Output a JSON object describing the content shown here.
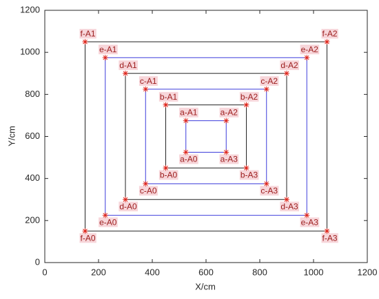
{
  "chart_data": {
    "type": "line",
    "xlabel": "X/cm",
    "ylabel": "Y/cm",
    "xlim": [
      0,
      1200
    ],
    "ylim": [
      0,
      1200
    ],
    "xticks": [
      0,
      200,
      400,
      600,
      800,
      1000,
      1200
    ],
    "yticks": [
      0,
      200,
      400,
      600,
      800,
      1000,
      1200
    ],
    "closed": true,
    "marker_color": "#e0261c",
    "label_background": "#f7d6da",
    "series": [
      {
        "labels": [
          "a-A0",
          "a-A1",
          "a-A2",
          "a-A3"
        ],
        "color": "#3b3bdb",
        "x": [
          525,
          525,
          675,
          675
        ],
        "values": [
          525,
          675,
          675,
          525
        ]
      },
      {
        "labels": [
          "b-A0",
          "b-A1",
          "b-A2",
          "b-A3"
        ],
        "color": "#222222",
        "x": [
          450,
          450,
          750,
          750
        ],
        "values": [
          450,
          750,
          750,
          450
        ]
      },
      {
        "labels": [
          "c-A0",
          "c-A1",
          "c-A2",
          "c-A3"
        ],
        "color": "#3b3bdb",
        "x": [
          375,
          375,
          825,
          825
        ],
        "values": [
          375,
          825,
          825,
          375
        ]
      },
      {
        "labels": [
          "d-A0",
          "d-A1",
          "d-A2",
          "d-A3"
        ],
        "color": "#222222",
        "x": [
          300,
          300,
          900,
          900
        ],
        "values": [
          300,
          900,
          900,
          300
        ]
      },
      {
        "labels": [
          "e-A0",
          "e-A1",
          "e-A2",
          "e-A3"
        ],
        "color": "#3b3bdb",
        "x": [
          225,
          225,
          975,
          975
        ],
        "values": [
          225,
          975,
          975,
          225
        ]
      },
      {
        "labels": [
          "f-A0",
          "f-A1",
          "f-A2",
          "f-A3"
        ],
        "color": "#222222",
        "x": [
          150,
          150,
          1050,
          1050
        ],
        "values": [
          150,
          1050,
          1050,
          150
        ]
      }
    ]
  }
}
